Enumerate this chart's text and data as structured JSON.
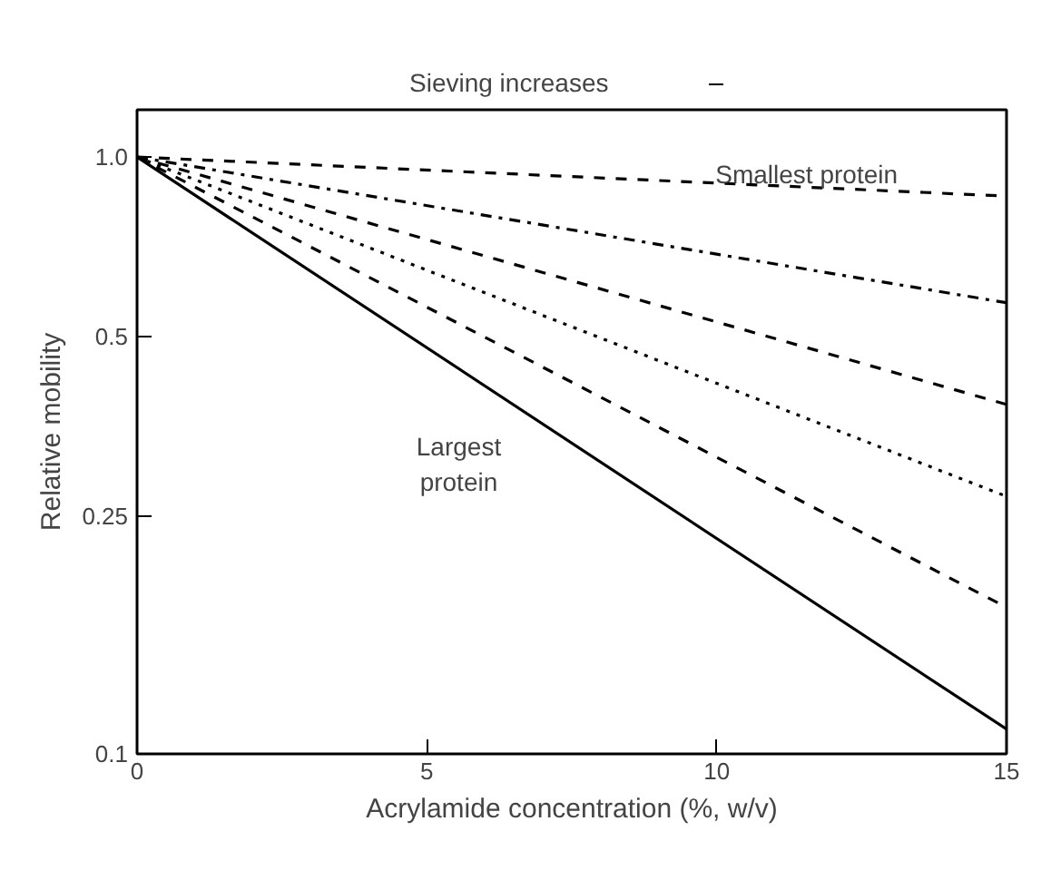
{
  "chart_data": {
    "type": "line",
    "xlabel": "Acrylamide concentration (%, w/v)",
    "ylabel": "Relative mobility",
    "x": [
      0,
      15
    ],
    "log": "y",
    "xlim": [
      0,
      15
    ],
    "xticks": [
      0,
      5,
      10,
      15
    ],
    "ylim": [
      0.1,
      1.2
    ],
    "yticks": [
      {
        "value": 0.1,
        "label": "0.1"
      },
      {
        "value": 0.25,
        "label": "0.25"
      },
      {
        "value": 0.5,
        "label": "0.5"
      },
      {
        "value": 1.0,
        "label": "1.0"
      }
    ],
    "grid": false,
    "marker": "none",
    "series": [
      {
        "color": "#000000",
        "values": [
          1.0,
          0.86
        ],
        "line_style": "dashed"
      },
      {
        "color": "#000000",
        "values": [
          1.0,
          0.57
        ],
        "line_style": "dashdot"
      },
      {
        "color": "#000000",
        "values": [
          1.0,
          0.385
        ],
        "line_style": "dashed"
      },
      {
        "color": "#000000",
        "values": [
          1.0,
          0.27
        ],
        "line_style": "dotted"
      },
      {
        "color": "#000000",
        "values": [
          1.0,
          0.176
        ],
        "line_style": "dashed"
      },
      {
        "color": "#000000",
        "values": [
          1.0,
          0.11
        ],
        "line_style": "solid"
      }
    ],
    "annotations": [
      "Sieving increases",
      "Smallest protein",
      "Largest\nprotein"
    ]
  }
}
